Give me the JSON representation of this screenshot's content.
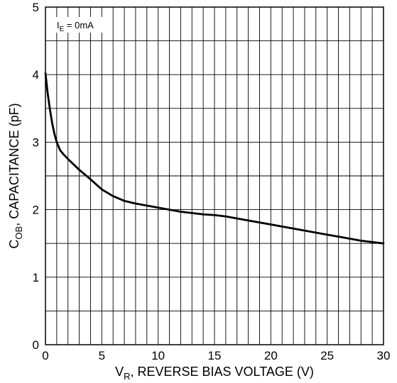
{
  "chart_data": {
    "type": "line",
    "title": "",
    "xlabel": {
      "main": "V",
      "sub": "R",
      "rest": ", REVERSE BIAS VOLTAGE (V)"
    },
    "ylabel": {
      "main": "C",
      "sub": "OB",
      "rest": ", CAPACITANCE (pF)"
    },
    "annotation": {
      "main": "I",
      "sub": "E",
      "rest": " = 0mA"
    },
    "xlim": [
      0,
      30
    ],
    "ylim": [
      0,
      5
    ],
    "x_ticks": [
      0,
      5,
      10,
      15,
      20,
      25,
      30
    ],
    "y_ticks": [
      0,
      1,
      2,
      3,
      4,
      5
    ],
    "x_minor_step": 1,
    "y_minor_step": 0.5,
    "grid": true,
    "series": [
      {
        "x": [
          0,
          0.2,
          0.4,
          0.6,
          0.8,
          1,
          1.3,
          1.6,
          2,
          2.5,
          3,
          4,
          5,
          6,
          7,
          8,
          9,
          10,
          11,
          12,
          13,
          14,
          15,
          16,
          17,
          18,
          19,
          20,
          21,
          22,
          23,
          24,
          25,
          26,
          27,
          28,
          29,
          30
        ],
        "y": [
          4.02,
          3.72,
          3.48,
          3.28,
          3.12,
          3.0,
          2.88,
          2.82,
          2.75,
          2.67,
          2.59,
          2.45,
          2.3,
          2.2,
          2.13,
          2.09,
          2.06,
          2.03,
          2.0,
          1.97,
          1.95,
          1.93,
          1.92,
          1.9,
          1.87,
          1.84,
          1.81,
          1.78,
          1.75,
          1.72,
          1.69,
          1.66,
          1.63,
          1.6,
          1.57,
          1.54,
          1.52,
          1.5
        ]
      }
    ]
  },
  "style": {
    "line_color": "#000000",
    "grid_color": "#000000"
  }
}
